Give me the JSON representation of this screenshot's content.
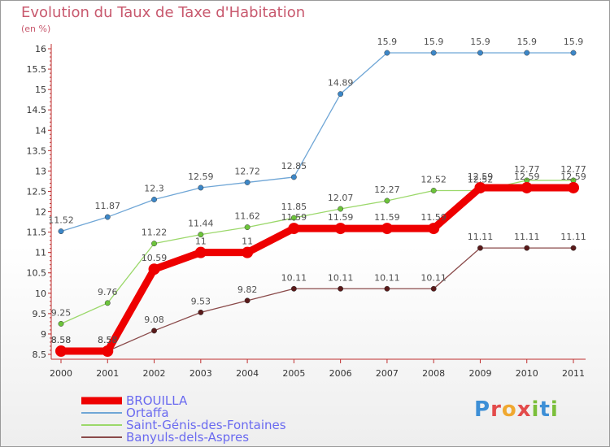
{
  "title": "Evolution du Taux de Taxe d'Habitation",
  "unit_label": "(en %)",
  "logo": {
    "letters": [
      {
        "ch": "P",
        "color": "#3d8fd6"
      },
      {
        "ch": "r",
        "color": "#e34b4b"
      },
      {
        "ch": "o",
        "color": "#f0a830"
      },
      {
        "ch": "x",
        "color": "#e34b4b"
      },
      {
        "ch": "i",
        "color": "#7bbf3a"
      },
      {
        "ch": "t",
        "color": "#3d8fd6"
      },
      {
        "ch": "i",
        "color": "#7bbf3a"
      }
    ]
  },
  "chart_data": {
    "type": "line",
    "title": "Evolution du Taux de Taxe d'Habitation",
    "ylabel": "(en %)",
    "xlabel": "",
    "x": [
      2000,
      2001,
      2002,
      2003,
      2004,
      2005,
      2006,
      2007,
      2008,
      2009,
      2010,
      2011
    ],
    "ylim": [
      8.5,
      16
    ],
    "yticks": [
      8.5,
      9,
      9.5,
      10,
      10.5,
      11,
      11.5,
      12,
      12.5,
      13,
      13.5,
      14,
      14.5,
      15,
      15.5,
      16
    ],
    "grid": false,
    "legend_position": "bottom-left",
    "series": [
      {
        "name": "BROUILLA",
        "color": "#ee0000",
        "marker_color": "#ee0000",
        "emphasis": true,
        "values": [
          8.58,
          8.58,
          10.59,
          11,
          11,
          11.59,
          11.59,
          11.59,
          11.59,
          12.59,
          12.59,
          12.59
        ]
      },
      {
        "name": "Ortaffa",
        "color": "#6fa6d6",
        "marker_color": "#3c87c8",
        "emphasis": false,
        "values": [
          11.52,
          11.87,
          12.3,
          12.59,
          12.72,
          12.85,
          14.89,
          15.9,
          15.9,
          15.9,
          15.9,
          15.9
        ]
      },
      {
        "name": "Saint-Génis-des-Fontaines",
        "color": "#9bd86a",
        "marker_color": "#6cc43a",
        "emphasis": false,
        "values": [
          9.25,
          9.76,
          11.22,
          11.44,
          11.62,
          11.85,
          12.07,
          12.27,
          12.52,
          12.52,
          12.77,
          12.77
        ]
      },
      {
        "name": "Banyuls-dels-Aspres",
        "color": "#8a4a4a",
        "marker_color": "#5a1a1a",
        "emphasis": false,
        "values": [
          8.58,
          8.58,
          9.08,
          9.53,
          9.82,
          10.11,
          10.11,
          10.11,
          10.11,
          11.11,
          11.11,
          11.11
        ]
      }
    ]
  }
}
